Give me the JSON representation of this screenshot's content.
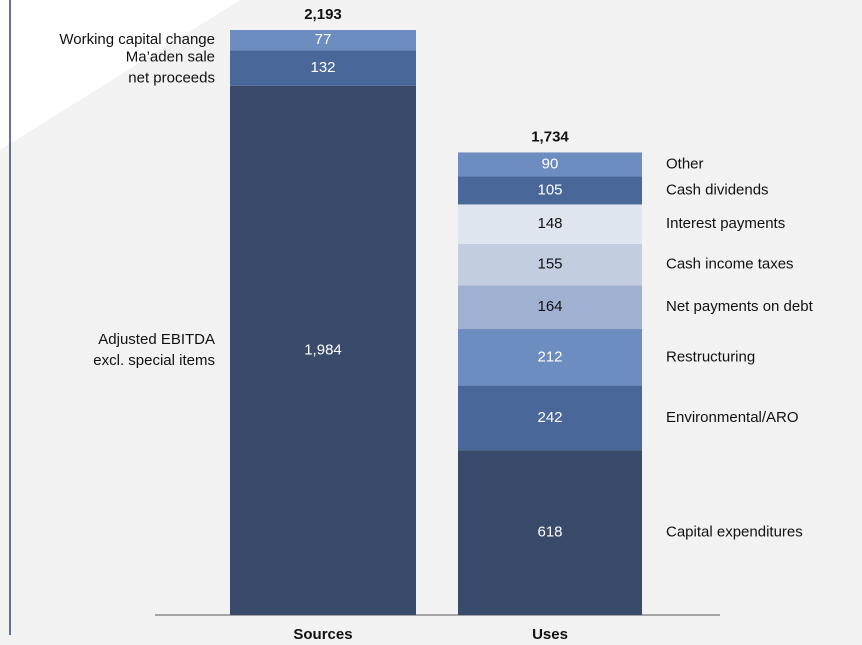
{
  "chart_data": {
    "type": "stacked_bar",
    "categories": [
      "Sources",
      "Uses"
    ],
    "stacks": [
      {
        "total": 2193,
        "total_label": "2,193",
        "label_side": "left",
        "segments": [
          {
            "name": [
              "Adjusted EBITDA",
              "excl. special items"
            ],
            "value": 1984,
            "value_label": "1,984",
            "color": "#3a4a6b",
            "text_color": "#ffffff"
          },
          {
            "name": [
              "Ma’aden sale",
              "net proceeds"
            ],
            "value": 132,
            "color": "#4a679a",
            "text_color": "#ffffff"
          },
          {
            "name": [
              "Working capital change"
            ],
            "value": 77,
            "color": "#6d8cc0",
            "text_color": "#ffffff"
          }
        ]
      },
      {
        "total": 1734,
        "total_label": "1,734",
        "label_side": "right",
        "segments": [
          {
            "name": [
              "Capital expenditures"
            ],
            "value": 618,
            "color": "#3a4a6b",
            "text_color": "#ffffff"
          },
          {
            "name": [
              "Environmental/ARO"
            ],
            "value": 242,
            "color": "#4a679a",
            "text_color": "#ffffff"
          },
          {
            "name": [
              "Restructuring"
            ],
            "value": 212,
            "color": "#6d8cc0",
            "text_color": "#ffffff"
          },
          {
            "name": [
              "Net payments on debt"
            ],
            "value": 164,
            "color": "#9fb0d0",
            "text_color": "#111111"
          },
          {
            "name": [
              "Cash income taxes"
            ],
            "value": 155,
            "color": "#c2cde0",
            "text_color": "#111111"
          },
          {
            "name": [
              "Interest payments"
            ],
            "value": 148,
            "color": "#dfe5ef",
            "text_color": "#111111"
          },
          {
            "name": [
              "Cash dividends"
            ],
            "value": 105,
            "color": "#4a679a",
            "text_color": "#ffffff"
          },
          {
            "name": [
              "Other"
            ],
            "value": 90,
            "color": "#6d8cc0",
            "text_color": "#ffffff"
          }
        ]
      }
    ]
  }
}
